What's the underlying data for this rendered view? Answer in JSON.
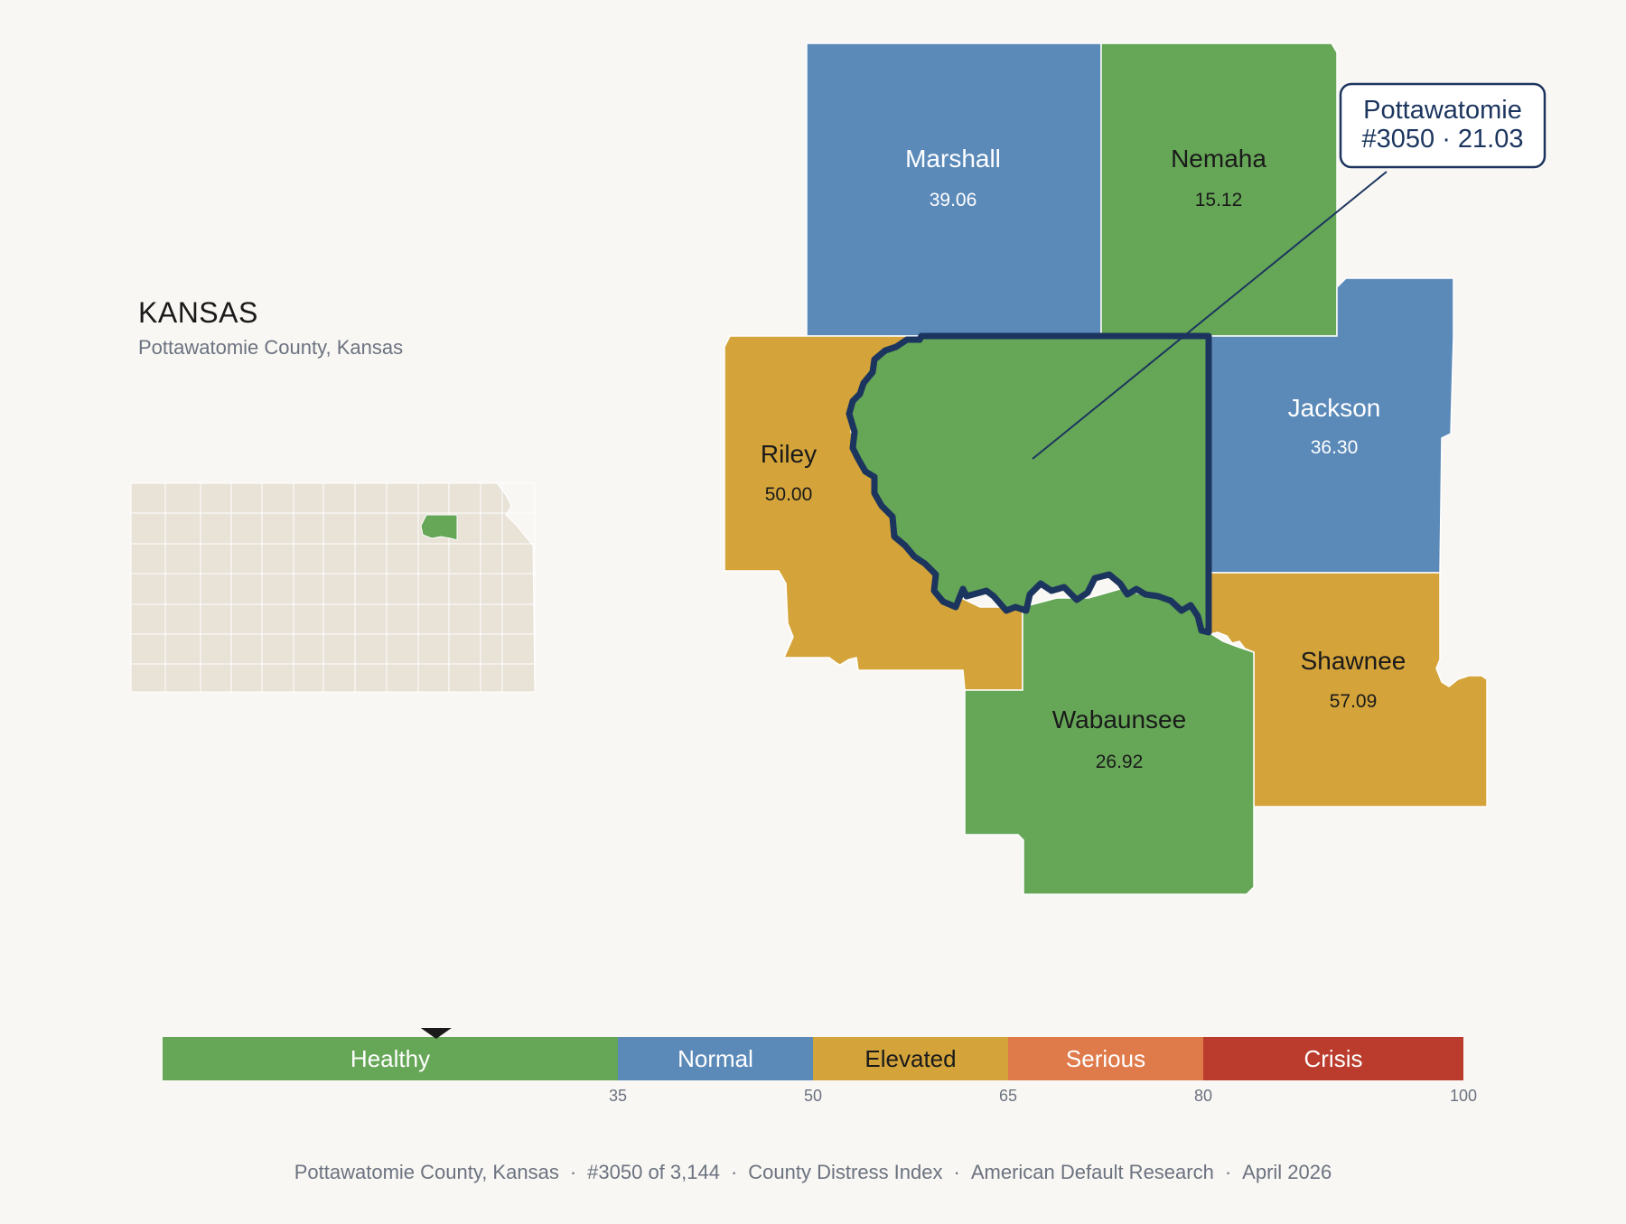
{
  "inset": {
    "title": "KANSAS",
    "subtitle": "Pottawatomie County, Kansas"
  },
  "colors": {
    "background": "#f9f7f3",
    "healthy": "#66a657",
    "normal": "#5b8ab9",
    "elevated": "#d4a43a",
    "serious": "#df7a4a",
    "crisis": "#bb3c2d",
    "highlight_outline": "#1c355e",
    "state_fill": "#e8e2d7"
  },
  "counties": [
    {
      "name": "Marshall",
      "value": "39.06",
      "category": "normal"
    },
    {
      "name": "Nemaha",
      "value": "15.12",
      "category": "healthy"
    },
    {
      "name": "Jackson",
      "value": "36.30",
      "category": "normal"
    },
    {
      "name": "Riley",
      "value": "50.00",
      "category": "elevated"
    },
    {
      "name": "Shawnee",
      "value": "57.09",
      "category": "elevated"
    },
    {
      "name": "Wabaunsee",
      "value": "26.92",
      "category": "healthy"
    },
    {
      "name": "Pottawatomie",
      "value": "21.03",
      "category": "healthy",
      "highlighted": true
    }
  ],
  "callout": {
    "line1": "Pottawatomie",
    "line2": "#3050 · 21.03"
  },
  "legend": {
    "segments": [
      {
        "label": "Healthy",
        "from": 0,
        "to": 35,
        "color": "#66a657",
        "text_color": "#ffffff"
      },
      {
        "label": "Normal",
        "from": 35,
        "to": 50,
        "color": "#5b8ab9",
        "text_color": "#ffffff"
      },
      {
        "label": "Elevated",
        "from": 50,
        "to": 65,
        "color": "#d4a43a",
        "text_color": "#1a1a1a"
      },
      {
        "label": "Serious",
        "from": 65,
        "to": 80,
        "color": "#df7a4a",
        "text_color": "#ffffff"
      },
      {
        "label": "Crisis",
        "from": 80,
        "to": 100,
        "color": "#bb3c2d",
        "text_color": "#ffffff"
      }
    ],
    "ticks": [
      "35",
      "50",
      "65",
      "80",
      "100"
    ],
    "marker_value": 21.03
  },
  "footer": {
    "place": "Pottawatomie County, Kansas",
    "rank": "#3050 of 3,144",
    "index": "County Distress Index",
    "source": "American Default Research",
    "date": "April 2026"
  }
}
